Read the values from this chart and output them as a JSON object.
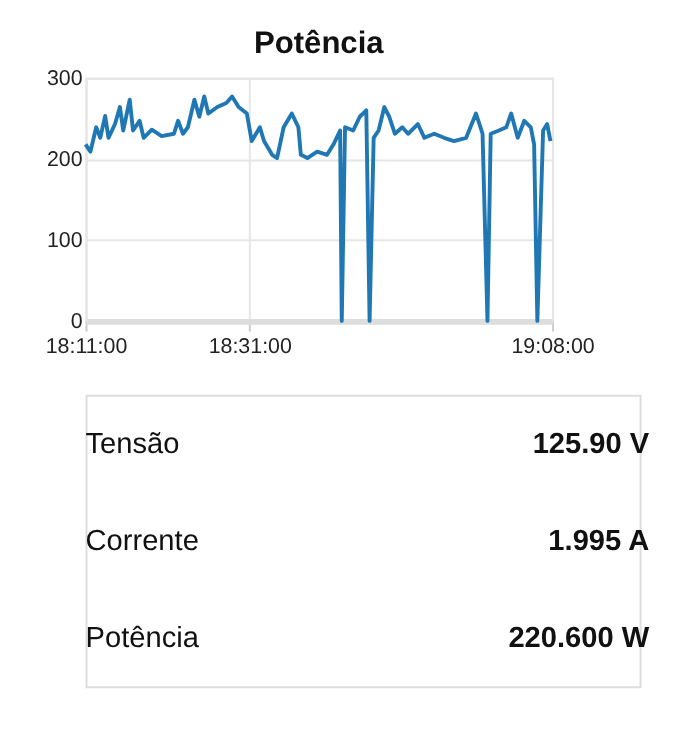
{
  "chart_data": [
    {
      "type": "line",
      "title": "Potência",
      "x": [
        18.1833,
        18.1933,
        18.205,
        18.2133,
        18.2233,
        18.23,
        18.2433,
        18.2533,
        18.26,
        18.2733,
        18.28,
        18.2933,
        18.3017,
        18.3183,
        18.3383,
        18.3633,
        18.3717,
        18.3817,
        18.3917,
        18.405,
        18.415,
        18.425,
        18.4333,
        18.4517,
        18.47,
        18.4817,
        18.495,
        18.5117,
        18.5217,
        18.5383,
        18.5467,
        18.5633,
        18.5733,
        18.5867,
        18.6033,
        18.6167,
        18.6217,
        18.635,
        18.655,
        18.675,
        18.6883,
        18.7017,
        18.705,
        18.7117,
        18.7283,
        18.7417,
        18.755,
        18.7617,
        18.77,
        18.78,
        18.7917,
        18.8017,
        18.8133,
        18.8283,
        18.84,
        18.86,
        18.8733,
        18.8933,
        18.9133,
        18.9333,
        18.9583,
        18.9783,
        18.9917,
        19.0017,
        19.0083,
        19.025,
        19.04,
        19.05,
        19.0633,
        19.0767,
        19.09,
        19.0967,
        19.1033,
        19.115,
        19.1233,
        19.13
      ],
      "series": [
        {
          "color": "#1f77b4",
          "values": [
            218,
            209,
            239,
            226,
            253,
            226,
            243,
            264,
            235,
            273,
            235,
            247,
            226,
            236,
            228,
            231,
            247,
            231,
            239,
            273,
            252,
            277,
            256,
            264,
            269,
            277,
            264,
            256,
            222,
            239,
            222,
            205,
            201,
            239,
            256,
            239,
            205,
            201,
            209,
            205,
            218,
            235,
            0,
            239,
            235,
            252,
            260,
            0,
            226,
            235,
            264,
            252,
            231,
            239,
            231,
            243,
            226,
            231,
            226,
            222,
            226,
            256,
            231,
            0,
            231,
            235,
            239,
            256,
            226,
            247,
            239,
            218,
            0,
            235,
            243,
            222
          ]
        }
      ],
      "xlim": [
        18.1833,
        19.1333
      ],
      "xticks": [
        {
          "value": 18.1833,
          "label": "18:11:00"
        },
        {
          "value": 18.5167,
          "label": "18:31:00"
        },
        {
          "value": 19.1333,
          "label": "19:08:00"
        }
      ],
      "ylim": [
        0,
        300
      ],
      "yticks": [
        0,
        100,
        200,
        300
      ],
      "grid": true,
      "marker": "none",
      "line_style": "solid"
    },
    {
      "type": "other",
      "annotations": [
        "Tensão",
        "125.90 V",
        "Corrente",
        "1.995 A",
        "Potência",
        "220.600 W"
      ]
    }
  ]
}
